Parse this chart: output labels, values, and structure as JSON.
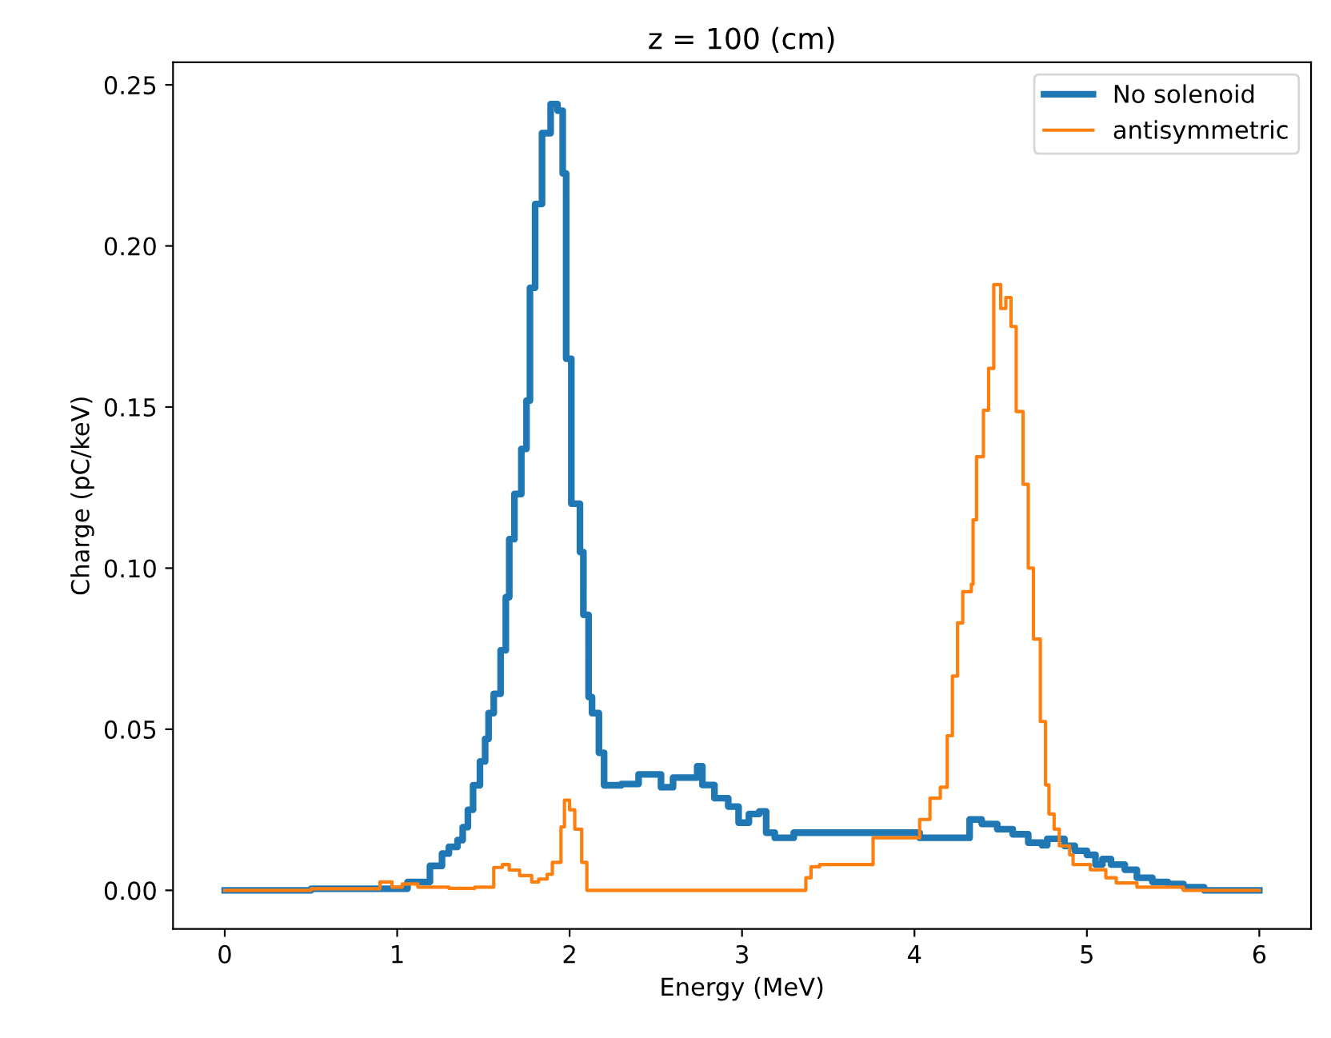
{
  "chart_data": {
    "type": "step",
    "title": "z = 100 (cm)",
    "xlabel": "Energy (MeV)",
    "ylabel": "Charge (pC/keV)",
    "xlim": [
      -0.3,
      6.3
    ],
    "ylim": [
      -0.012,
      0.257
    ],
    "xticks": [
      0,
      1,
      2,
      3,
      4,
      5,
      6
    ],
    "yticks": [
      {
        "value": 0,
        "label": "0.00"
      },
      {
        "value": 0.05,
        "label": "0.05"
      },
      {
        "value": 0.1,
        "label": "0.10"
      },
      {
        "value": 0.15,
        "label": "0.15"
      },
      {
        "value": 0.2,
        "label": "0.20"
      },
      {
        "value": 0.25,
        "label": "0.25"
      }
    ],
    "legend": "top right",
    "grid": false,
    "line_style": "solid",
    "series": [
      {
        "name": "No solenoid",
        "color": "#1f77b4",
        "x": [
          0,
          0.5,
          1.06,
          1.19,
          1.26,
          1.3,
          1.35,
          1.38,
          1.41,
          1.44,
          1.48,
          1.51,
          1.53,
          1.56,
          1.6,
          1.63,
          1.65,
          1.68,
          1.72,
          1.75,
          1.77,
          1.8,
          1.84,
          1.89,
          1.93,
          1.96,
          1.98,
          2.01,
          2.06,
          2.08,
          2.11,
          2.13,
          2.17,
          2.2,
          2.3,
          2.4,
          2.53,
          2.6,
          2.74,
          2.77,
          2.84,
          2.92,
          2.98,
          3.04,
          3.1,
          3.14,
          3.19,
          3.3,
          4.03,
          4.32,
          4.39,
          4.48,
          4.57,
          4.66,
          4.74,
          4.77,
          4.87,
          4.93,
          5.0,
          5.05,
          5.09,
          5.14,
          5.22,
          5.29,
          5.38,
          5.47,
          5.56,
          5.68,
          6.0
        ],
        "values": [
          0,
          0.0005,
          0.0026,
          0.0076,
          0.0114,
          0.0135,
          0.0156,
          0.0196,
          0.025,
          0.0326,
          0.04,
          0.047,
          0.055,
          0.061,
          0.0745,
          0.091,
          0.109,
          0.123,
          0.137,
          0.152,
          0.187,
          0.213,
          0.235,
          0.244,
          0.242,
          0.2225,
          0.165,
          0.12,
          0.105,
          0.0855,
          0.06,
          0.055,
          0.0427,
          0.0326,
          0.033,
          0.036,
          0.032,
          0.035,
          0.0385,
          0.0327,
          0.0286,
          0.026,
          0.021,
          0.0237,
          0.0245,
          0.0179,
          0.0163,
          0.0179,
          0.0163,
          0.022,
          0.0206,
          0.019,
          0.0174,
          0.0148,
          0.014,
          0.016,
          0.0138,
          0.0123,
          0.011,
          0.008,
          0.0097,
          0.008,
          0.0064,
          0.0039,
          0.0026,
          0.002,
          0.001,
          0,
          0
        ]
      },
      {
        "name": "antisymmetric",
        "color": "#ff7f0e",
        "x": [
          0,
          0.5,
          0.9,
          0.97,
          1.03,
          1.12,
          1.3,
          1.45,
          1.56,
          1.61,
          1.65,
          1.71,
          1.78,
          1.82,
          1.87,
          1.9,
          1.95,
          1.97,
          2.0,
          2.03,
          2.07,
          2.1,
          3.37,
          3.4,
          3.45,
          3.76,
          4.03,
          4.09,
          4.15,
          4.19,
          4.22,
          4.25,
          4.28,
          4.33,
          4.34,
          4.36,
          4.4,
          4.43,
          4.46,
          4.5,
          4.53,
          4.56,
          4.59,
          4.63,
          4.66,
          4.69,
          4.73,
          4.76,
          4.78,
          4.81,
          4.84,
          4.9,
          4.92,
          5.02,
          5.11,
          5.17,
          5.29,
          5.56,
          6.0
        ],
        "values": [
          0,
          0.0005,
          0.0026,
          0.001,
          0.002,
          0.001,
          0.0006,
          0.001,
          0.0071,
          0.008,
          0.0063,
          0.0046,
          0.0026,
          0.0035,
          0.005,
          0.0087,
          0.0197,
          0.028,
          0.025,
          0.019,
          0.0087,
          0,
          0.0039,
          0.0073,
          0.008,
          0.0163,
          0.022,
          0.0286,
          0.032,
          0.048,
          0.0665,
          0.083,
          0.0927,
          0.095,
          0.115,
          0.1346,
          0.149,
          0.162,
          0.188,
          0.1806,
          0.184,
          0.175,
          0.1486,
          0.126,
          0.1,
          0.078,
          0.0524,
          0.0327,
          0.0237,
          0.019,
          0.0138,
          0.011,
          0.008,
          0.0064,
          0.0039,
          0.0023,
          0.001,
          0,
          0
        ]
      }
    ]
  }
}
